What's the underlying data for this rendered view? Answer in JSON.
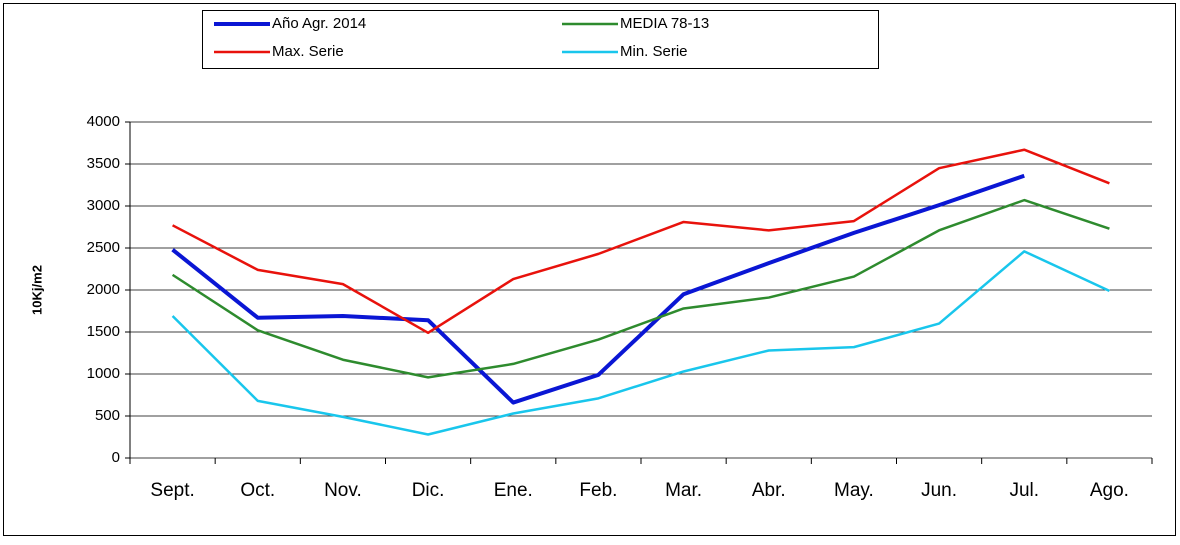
{
  "chart_data": {
    "type": "line",
    "y_label": "10Kj/m2",
    "categories": [
      "Sept.",
      "Oct.",
      "Nov.",
      "Dic.",
      "Ene.",
      "Feb.",
      "Mar.",
      "Abr.",
      "May.",
      "Jun.",
      "Jul.",
      "Ago."
    ],
    "series": [
      {
        "name": "Año Agr. 2014",
        "color": "#0a16d4",
        "values": [
          2480,
          1670,
          1690,
          1640,
          660,
          990,
          1950,
          2320,
          2680,
          3010,
          3360,
          null
        ]
      },
      {
        "name": "MEDIA 78-13",
        "color": "#2e8b2e",
        "values": [
          2180,
          1520,
          1170,
          960,
          1120,
          1410,
          1780,
          1910,
          2160,
          2710,
          3070,
          2730
        ]
      },
      {
        "name": "Max. Serie",
        "color": "#e8120c",
        "values": [
          2770,
          2240,
          2070,
          1490,
          2130,
          2430,
          2810,
          2710,
          2820,
          3450,
          3670,
          3270
        ]
      },
      {
        "name": "Min. Serie",
        "color": "#19c6ec",
        "values": [
          1690,
          680,
          490,
          280,
          530,
          710,
          1030,
          1280,
          1320,
          1600,
          2460,
          1990
        ]
      }
    ],
    "ylim": [
      0,
      4000
    ],
    "yticks": [
      0,
      500,
      1000,
      1500,
      2000,
      2500,
      3000,
      3500,
      4000
    ],
    "grid": true
  }
}
